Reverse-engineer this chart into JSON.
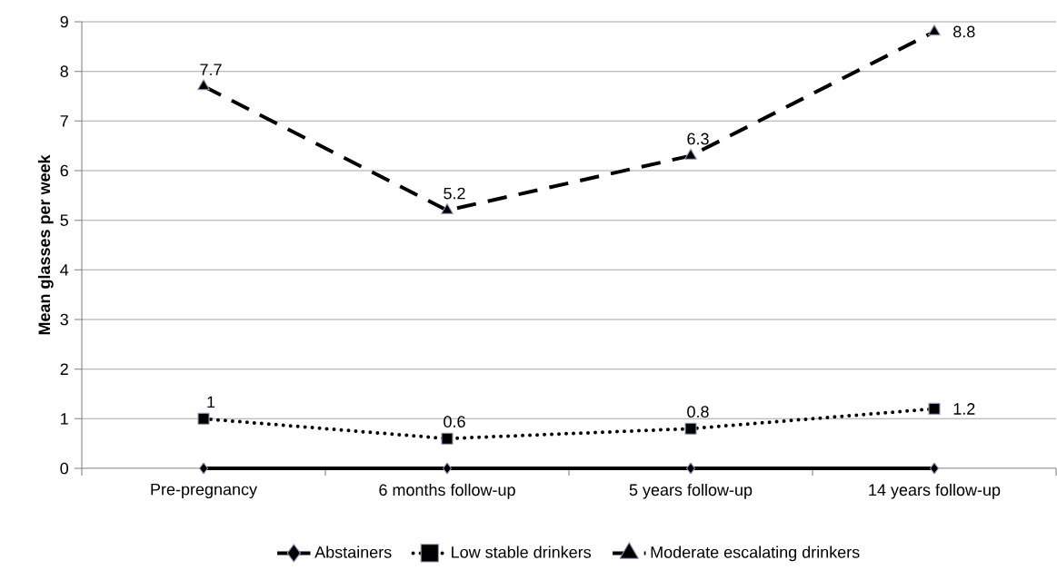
{
  "chart_data": {
    "type": "line",
    "ylabel": "Mean glasses per week",
    "categories": [
      "Pre-pregnancy",
      "6 months follow-up",
      "5 years follow-up",
      "14 years follow-up"
    ],
    "series": [
      {
        "name": "Abstainers",
        "color": "#000000",
        "values": [
          0,
          0,
          0,
          0
        ],
        "marker": "diamond",
        "line_style": "solid"
      },
      {
        "name": "Low stable drinkers",
        "color": "#000000",
        "values": [
          1,
          0.6,
          0.8,
          1.2
        ],
        "marker": "square",
        "line_style": "dotted",
        "value_labels": [
          "1",
          "0.6",
          "0.8",
          "1.2"
        ]
      },
      {
        "name": "Moderate escalating drinkers",
        "color": "#000000",
        "values": [
          7.7,
          5.2,
          6.3,
          8.8
        ],
        "marker": "triangle",
        "line_style": "dashed",
        "value_labels": [
          "7.7",
          "5.2",
          "6.3",
          "8.8"
        ]
      }
    ],
    "ylim": [
      0,
      9
    ],
    "yticks": [
      0,
      1,
      2,
      3,
      4,
      5,
      6,
      7,
      8,
      9
    ],
    "grid": "y",
    "legend": "bottom"
  }
}
